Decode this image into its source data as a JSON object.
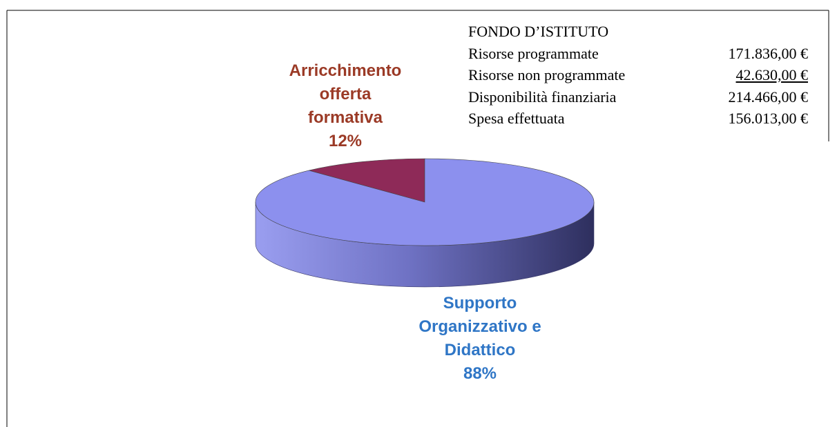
{
  "chart_data": {
    "type": "pie",
    "categories": [
      "Arricchimento offerta formativa",
      "Supporto Organizzativo e Didattico"
    ],
    "values": [
      12,
      88
    ],
    "value_labels": [
      "12%",
      "88%"
    ],
    "colors": [
      "#8e2a58",
      "#8c90ee"
    ],
    "label_colors": [
      "#9b3a26",
      "#2f76c6"
    ],
    "info_box": {
      "title": "FONDO D’ISTITUTO",
      "rows": [
        {
          "label": "Risorse programmate",
          "amount": "171.836,00 €"
        },
        {
          "label": "Risorse non programmate",
          "amount": "42.630,00 €"
        },
        {
          "label": "Disponibilità finanziaria",
          "amount": "214.466,00 €"
        },
        {
          "label": "Spesa effettuata",
          "amount": "156.013,00 €"
        }
      ]
    }
  }
}
